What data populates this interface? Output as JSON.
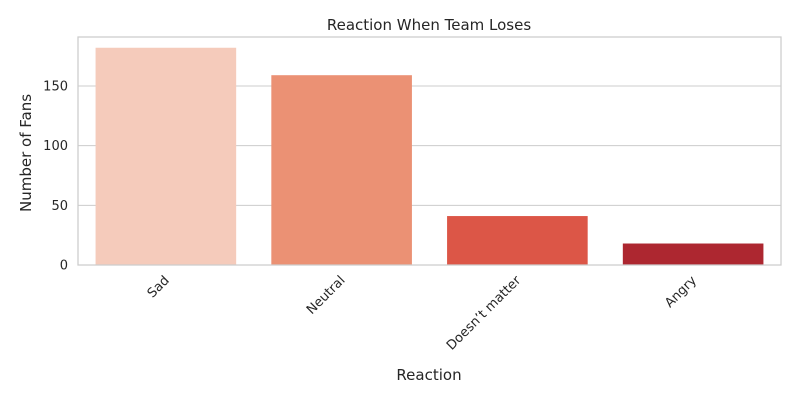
{
  "chart_data": {
    "type": "bar",
    "title": "Reaction When Team Loses",
    "xlabel": "Reaction",
    "ylabel": "Number of Fans",
    "categories": [
      "Sad",
      "Neutral",
      "Doesn’t matter",
      "Angry"
    ],
    "values": [
      182,
      159,
      41,
      18
    ],
    "colors": [
      "#f5cbbb",
      "#eb9174",
      "#dc5647",
      "#ad2730"
    ],
    "ylim": [
      0,
      191
    ],
    "yticks": [
      0,
      50,
      100,
      150
    ],
    "grid": "horizontal",
    "legend": "none"
  }
}
